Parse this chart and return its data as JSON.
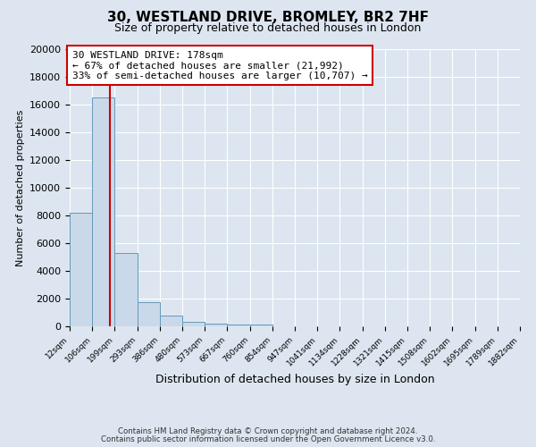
{
  "title": "30, WESTLAND DRIVE, BROMLEY, BR2 7HF",
  "subtitle": "Size of property relative to detached houses in London",
  "xlabel": "Distribution of detached houses by size in London",
  "ylabel": "Number of detached properties",
  "bar_values": [
    8200,
    16500,
    5300,
    1750,
    800,
    300,
    200,
    150,
    100,
    0,
    0,
    0,
    0,
    0,
    0,
    0,
    0,
    0,
    0,
    0
  ],
  "categories": [
    "12sqm",
    "106sqm",
    "199sqm",
    "293sqm",
    "386sqm",
    "480sqm",
    "573sqm",
    "667sqm",
    "760sqm",
    "854sqm",
    "947sqm",
    "1041sqm",
    "1134sqm",
    "1228sqm",
    "1321sqm",
    "1415sqm",
    "1508sqm",
    "1602sqm",
    "1695sqm",
    "1789sqm",
    "1882sqm"
  ],
  "bar_color": "#c9d9ea",
  "bar_edge_color": "#6699bb",
  "vline_color": "#cc0000",
  "ylim": [
    0,
    20000
  ],
  "yticks": [
    0,
    2000,
    4000,
    6000,
    8000,
    10000,
    12000,
    14000,
    16000,
    18000,
    20000
  ],
  "annotation_title": "30 WESTLAND DRIVE: 178sqm",
  "annotation_line1": "← 67% of detached houses are smaller (21,992)",
  "annotation_line2": "33% of semi-detached houses are larger (10,707) →",
  "annotation_box_color": "#ffffff",
  "annotation_box_edge": "#cc0000",
  "footer1": "Contains HM Land Registry data © Crown copyright and database right 2024.",
  "footer2": "Contains public sector information licensed under the Open Government Licence v3.0.",
  "background_color": "#dde6f0",
  "plot_bg_color": "#dde6f0",
  "grid_color": "#ffffff",
  "property_sqm": 178,
  "bin_edges": [
    12,
    106,
    199,
    293,
    386,
    480,
    573,
    667,
    760,
    854,
    947,
    1041,
    1134,
    1228,
    1321,
    1415,
    1508,
    1602,
    1695,
    1789,
    1882
  ]
}
